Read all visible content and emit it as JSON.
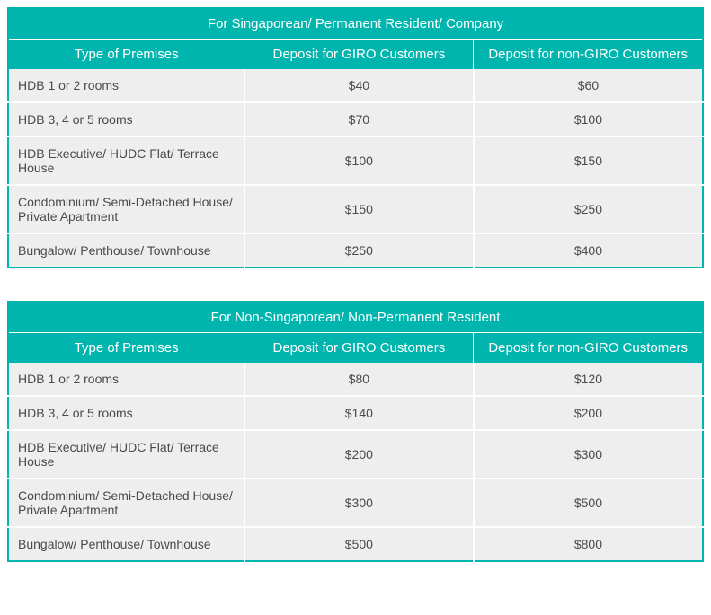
{
  "colors": {
    "header_bg": "#00b5ad",
    "header_text": "#ffffff",
    "row_bg": "#eeeeee",
    "row_text": "#4a4a4a",
    "border": "#00b5ad",
    "cell_divider": "#ffffff",
    "page_bg": "#ffffff"
  },
  "tables": [
    {
      "title": "For Singaporean/ Permanent Resident/ Company",
      "columns": [
        "Type of Premises",
        "Deposit for GIRO Customers",
        "Deposit for non-GIRO Customers"
      ],
      "rows": [
        {
          "premise": "HDB 1 or 2 rooms",
          "giro": "$40",
          "nongiro": "$60"
        },
        {
          "premise": "HDB 3, 4 or 5 rooms",
          "giro": "$70",
          "nongiro": "$100"
        },
        {
          "premise": "HDB Executive/ HUDC Flat/ Terrace House",
          "giro": "$100",
          "nongiro": "$150"
        },
        {
          "premise": "Condominium/ Semi-Detached House/ Private Apartment",
          "giro": "$150",
          "nongiro": "$250"
        },
        {
          "premise": "Bungalow/ Penthouse/ Townhouse",
          "giro": "$250",
          "nongiro": "$400"
        }
      ]
    },
    {
      "title": "For Non-Singaporean/ Non-Permanent Resident",
      "columns": [
        "Type of Premises",
        "Deposit for GIRO Customers",
        "Deposit for non-GIRO Customers"
      ],
      "rows": [
        {
          "premise": "HDB 1 or 2 rooms",
          "giro": "$80",
          "nongiro": "$120"
        },
        {
          "premise": "HDB 3, 4 or 5 rooms",
          "giro": "$140",
          "nongiro": "$200"
        },
        {
          "premise": "HDB Executive/ HUDC Flat/ Terrace House",
          "giro": "$200",
          "nongiro": "$300"
        },
        {
          "premise": "Condominium/ Semi-Detached House/ Private Apartment",
          "giro": "$300",
          "nongiro": "$500"
        },
        {
          "premise": "Bungalow/ Penthouse/ Townhouse",
          "giro": "$500",
          "nongiro": "$800"
        }
      ]
    }
  ]
}
